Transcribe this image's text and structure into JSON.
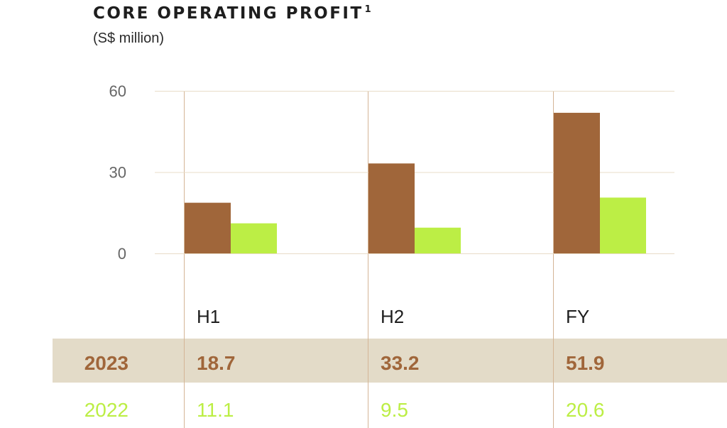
{
  "header": {
    "title": "CORE OPERATING PROFIT",
    "title_superscript": "1",
    "subtitle": "(S$ million)"
  },
  "colors": {
    "series_2023": "#A0663A",
    "series_2022": "#BCEE45",
    "highlight_row": "#E3DBC8",
    "grid": "#E8DCC8",
    "divider": "#D4B596"
  },
  "chart_data": {
    "type": "bar",
    "title": "CORE OPERATING PROFIT",
    "subtitle": "(S$ million)",
    "categories": [
      "H1",
      "H2",
      "FY"
    ],
    "series": [
      {
        "name": "2023",
        "values": [
          18.7,
          33.2,
          51.9
        ]
      },
      {
        "name": "2022",
        "values": [
          11.1,
          9.5,
          20.6
        ]
      }
    ],
    "yticks": [
      0,
      30,
      60
    ],
    "ylim": [
      0,
      60
    ],
    "grid": true,
    "legend": "data table below chart"
  }
}
